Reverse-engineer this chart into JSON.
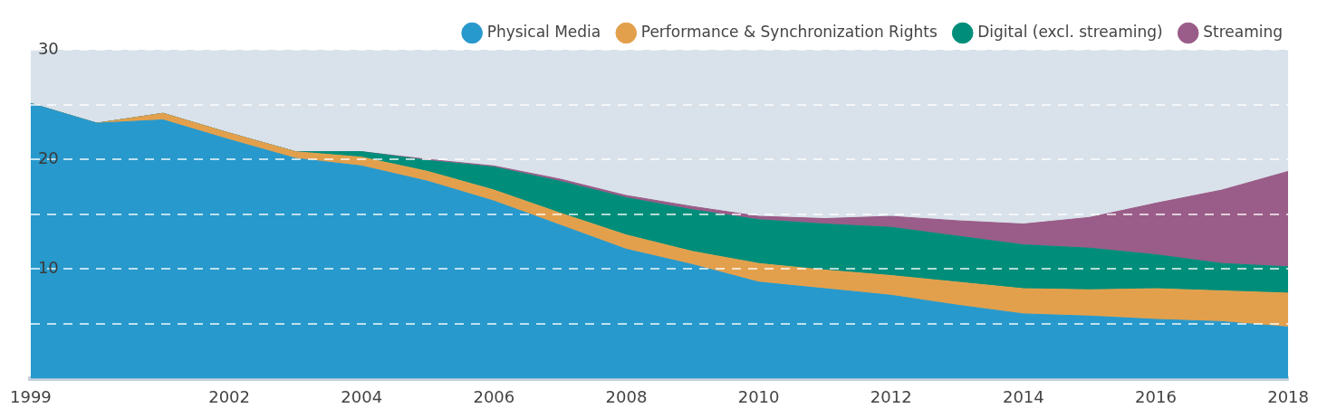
{
  "chart_data": {
    "type": "area",
    "stacked": true,
    "categories": [
      "1999",
      null,
      null,
      "2002",
      null,
      "2004",
      null,
      "2006",
      null,
      "2008",
      null,
      "2010",
      null,
      "2012",
      null,
      "2014",
      null,
      "2016",
      null,
      "2018"
    ],
    "series": [
      {
        "name": "Physical Media",
        "color": "#2799cc",
        "values": [
          25.1,
          23.3,
          23.6,
          21.8,
          20.1,
          19.4,
          18.0,
          16.2,
          14.0,
          11.8,
          10.4,
          8.8,
          8.2,
          7.6,
          6.7,
          5.9,
          5.7,
          5.4,
          5.2,
          4.7
        ]
      },
      {
        "name": "Performance & Synchronization Rights",
        "color": "#e3a04c",
        "values": [
          0,
          0,
          0.6,
          0.6,
          0.6,
          0.8,
          0.9,
          1.0,
          1.1,
          1.3,
          1.2,
          1.7,
          1.7,
          1.8,
          2.1,
          2.3,
          2.4,
          2.8,
          2.8,
          3.1
        ]
      },
      {
        "name": "Digital (excl. streaming)",
        "color": "#008e7a",
        "values": [
          0,
          0,
          0,
          0,
          0,
          0.5,
          1.0,
          2.1,
          2.9,
          3.4,
          3.8,
          4.0,
          4.2,
          4.4,
          4.2,
          4.0,
          3.8,
          3.1,
          2.5,
          2.4
        ]
      },
      {
        "name": "Streaming",
        "color": "#9a5c88",
        "values": [
          0,
          0,
          0,
          0,
          0,
          0,
          0.1,
          0.1,
          0.2,
          0.2,
          0.3,
          0.3,
          0.5,
          1.0,
          1.4,
          1.9,
          2.8,
          4.7,
          6.7,
          8.7
        ]
      }
    ],
    "ylim": [
      0,
      30
    ],
    "yticks": [
      {
        "value": 5,
        "label": null
      },
      10,
      {
        "value": 15,
        "label": null
      },
      20,
      {
        "value": 25,
        "label": null
      },
      30
    ],
    "grid": "y",
    "legend": "top right"
  }
}
